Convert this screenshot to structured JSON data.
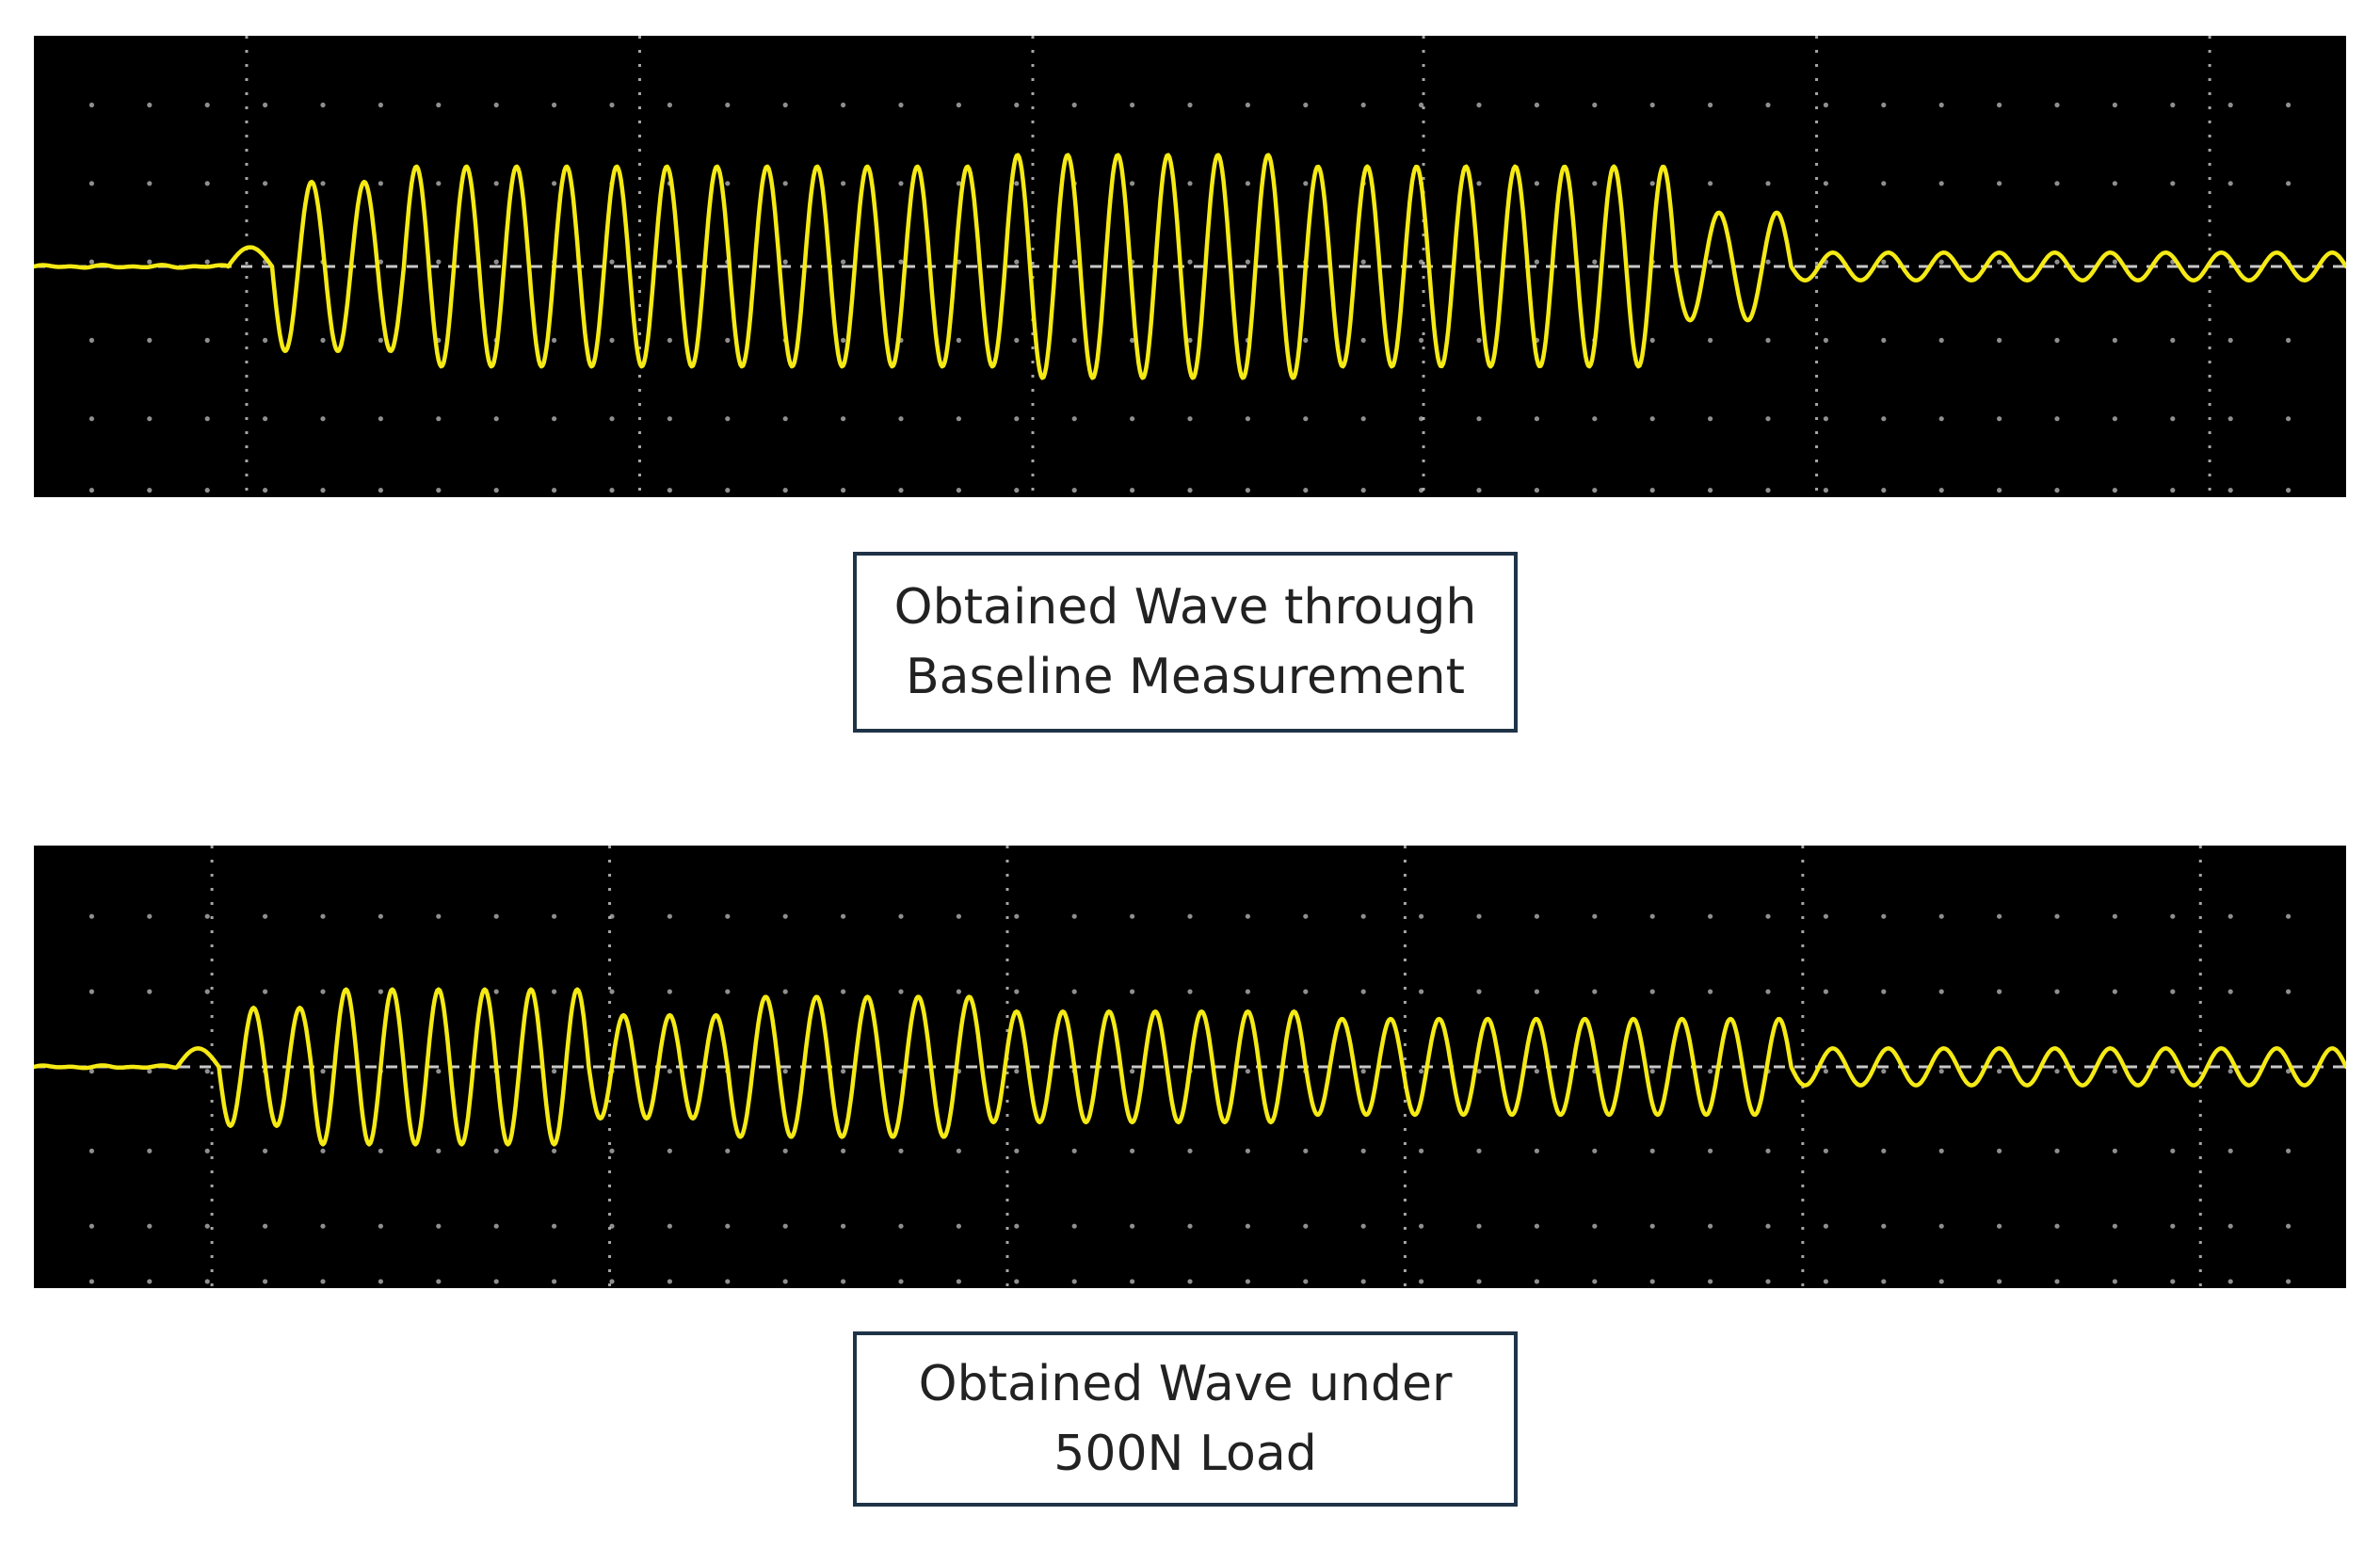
{
  "chart_data": [
    {
      "type": "line",
      "caption_lines": [
        "Obtained Wave through",
        "Baseline Measurement"
      ],
      "grid": "dotted, 10 horizontal x 6 vertical divisions",
      "background_color": "#000000",
      "trace_color": "#f5ea14",
      "baseline_color": "#c8c8c8",
      "x_range": [
        0,
        10
      ],
      "y_range": [
        -3,
        3
      ],
      "baseline": 0,
      "series": [
        {
          "segments": [
            {
              "x_start": 0.0,
              "x_end": 0.84,
              "amplitude": 0.0,
              "cycles": 0
            },
            {
              "x_start": 0.84,
              "x_end": 1.03,
              "amplitude": 0.25,
              "cycles": 0.5
            },
            {
              "x_start": 1.03,
              "x_end": 1.6,
              "amplitude": 1.1,
              "cycles": 2.5
            },
            {
              "x_start": 1.6,
              "x_end": 4.2,
              "amplitude": 1.3,
              "cycles": 12
            },
            {
              "x_start": 4.2,
              "x_end": 5.5,
              "amplitude": 1.45,
              "cycles": 6
            },
            {
              "x_start": 5.5,
              "x_end": 7.1,
              "amplitude": 1.3,
              "cycles": 7.5
            },
            {
              "x_start": 7.1,
              "x_end": 7.6,
              "amplitude": 0.7,
              "cycles": 2
            },
            {
              "x_start": 7.6,
              "x_end": 10.0,
              "amplitude": 0.18,
              "cycles": 10
            }
          ]
        }
      ]
    },
    {
      "type": "line",
      "caption_lines": [
        "Obtained Wave under",
        "500N Load"
      ],
      "grid": "dotted, 10 horizontal x 6 vertical divisions",
      "background_color": "#000000",
      "trace_color": "#f5ea14",
      "baseline_color": "#c8c8c8",
      "x_range": [
        0,
        10
      ],
      "y_range": [
        -3,
        3
      ],
      "baseline": 0,
      "series": [
        {
          "segments": [
            {
              "x_start": 0.0,
              "x_end": 0.62,
              "amplitude": 0.0,
              "cycles": 0
            },
            {
              "x_start": 0.62,
              "x_end": 0.8,
              "amplitude": 0.25,
              "cycles": 0.5
            },
            {
              "x_start": 0.8,
              "x_end": 1.2,
              "amplitude": 0.8,
              "cycles": 2
            },
            {
              "x_start": 1.2,
              "x_end": 2.4,
              "amplitude": 1.05,
              "cycles": 6
            },
            {
              "x_start": 2.4,
              "x_end": 3.0,
              "amplitude": 0.7,
              "cycles": 3
            },
            {
              "x_start": 3.0,
              "x_end": 4.1,
              "amplitude": 0.95,
              "cycles": 5
            },
            {
              "x_start": 4.1,
              "x_end": 5.5,
              "amplitude": 0.75,
              "cycles": 7
            },
            {
              "x_start": 5.5,
              "x_end": 7.6,
              "amplitude": 0.65,
              "cycles": 10
            },
            {
              "x_start": 7.6,
              "x_end": 10.0,
              "amplitude": 0.25,
              "cycles": 10
            }
          ]
        }
      ]
    }
  ]
}
